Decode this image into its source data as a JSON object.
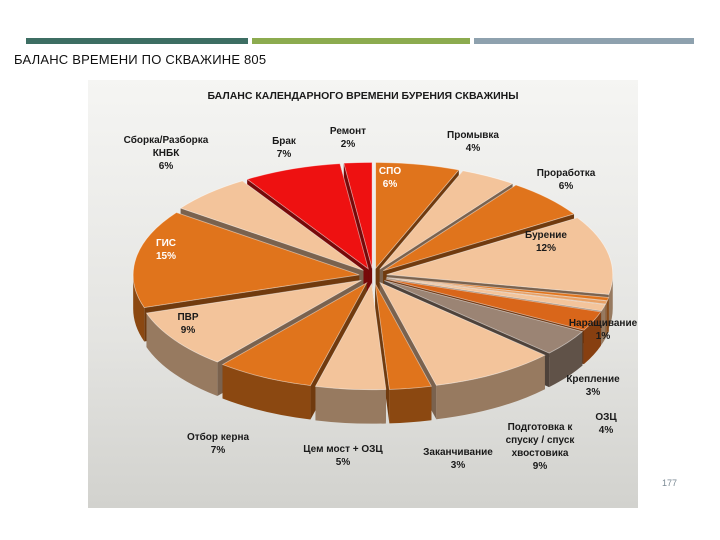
{
  "slide": {
    "title": "БАЛАНС ВРЕМЕНИ ПО СКВАЖИНЕ 805",
    "page_number": "177",
    "bar_colors": [
      "#3d6e63",
      "#8cab4f",
      "#8ea1ae"
    ]
  },
  "chart_data": {
    "type": "pie",
    "title": "БАЛАНС  КАЛЕНДАРНОГО  ВРЕМЕНИ  БУРЕНИЯ СКВАЖИНЫ",
    "style": "exploded-3d",
    "legend": "none",
    "slices": [
      {
        "label": "СПО",
        "value": 6,
        "display": "6%",
        "color": "#e0741c"
      },
      {
        "label": "Промывка",
        "value": 4,
        "display": "4%",
        "color": "#f3c49b"
      },
      {
        "label": "Проработка",
        "value": 6,
        "display": "6%",
        "color": "#e0741c"
      },
      {
        "label": "Бурение",
        "value": 12,
        "display": "12%",
        "color": "#f3c49b"
      },
      {
        "label": "",
        "value": 0.5,
        "display": "",
        "color": "#e0741c"
      },
      {
        "label": "",
        "value": 0.5,
        "display": "",
        "color": "#e8a064"
      },
      {
        "label": "Наращивание",
        "value": 1,
        "display": "1%",
        "color": "#f3c49b"
      },
      {
        "label": "Крепление",
        "value": 3,
        "display": "3%",
        "color": "#d9661a"
      },
      {
        "label": "ОЗЦ",
        "value": 4,
        "display": "4%",
        "color": "#9b8474"
      },
      {
        "label": "Подготовка к спуску / спуск хвостовика",
        "value": 9,
        "display": "9%",
        "color": "#f3c49b"
      },
      {
        "label": "Заканчивание",
        "value": 3,
        "display": "3%",
        "color": "#e0741c"
      },
      {
        "label": "Цем мост + ОЗЦ",
        "value": 5,
        "display": "5%",
        "color": "#f3c49b"
      },
      {
        "label": "Отбор керна",
        "value": 7,
        "display": "7%",
        "color": "#e0741c"
      },
      {
        "label": "ПВР",
        "value": 9,
        "display": "9%",
        "color": "#f3c49b"
      },
      {
        "label": "ГИС",
        "value": 15,
        "display": "15%",
        "color": "#e0741c"
      },
      {
        "label": "Сборка/Разборка КНБК",
        "value": 6,
        "display": "6%",
        "color": "#f3c49b"
      },
      {
        "label": "Брак",
        "value": 7,
        "display": "7%",
        "color": "#ee1111"
      },
      {
        "label": "Ремонт",
        "value": 2,
        "display": "2%",
        "color": "#ee1111"
      }
    ]
  }
}
